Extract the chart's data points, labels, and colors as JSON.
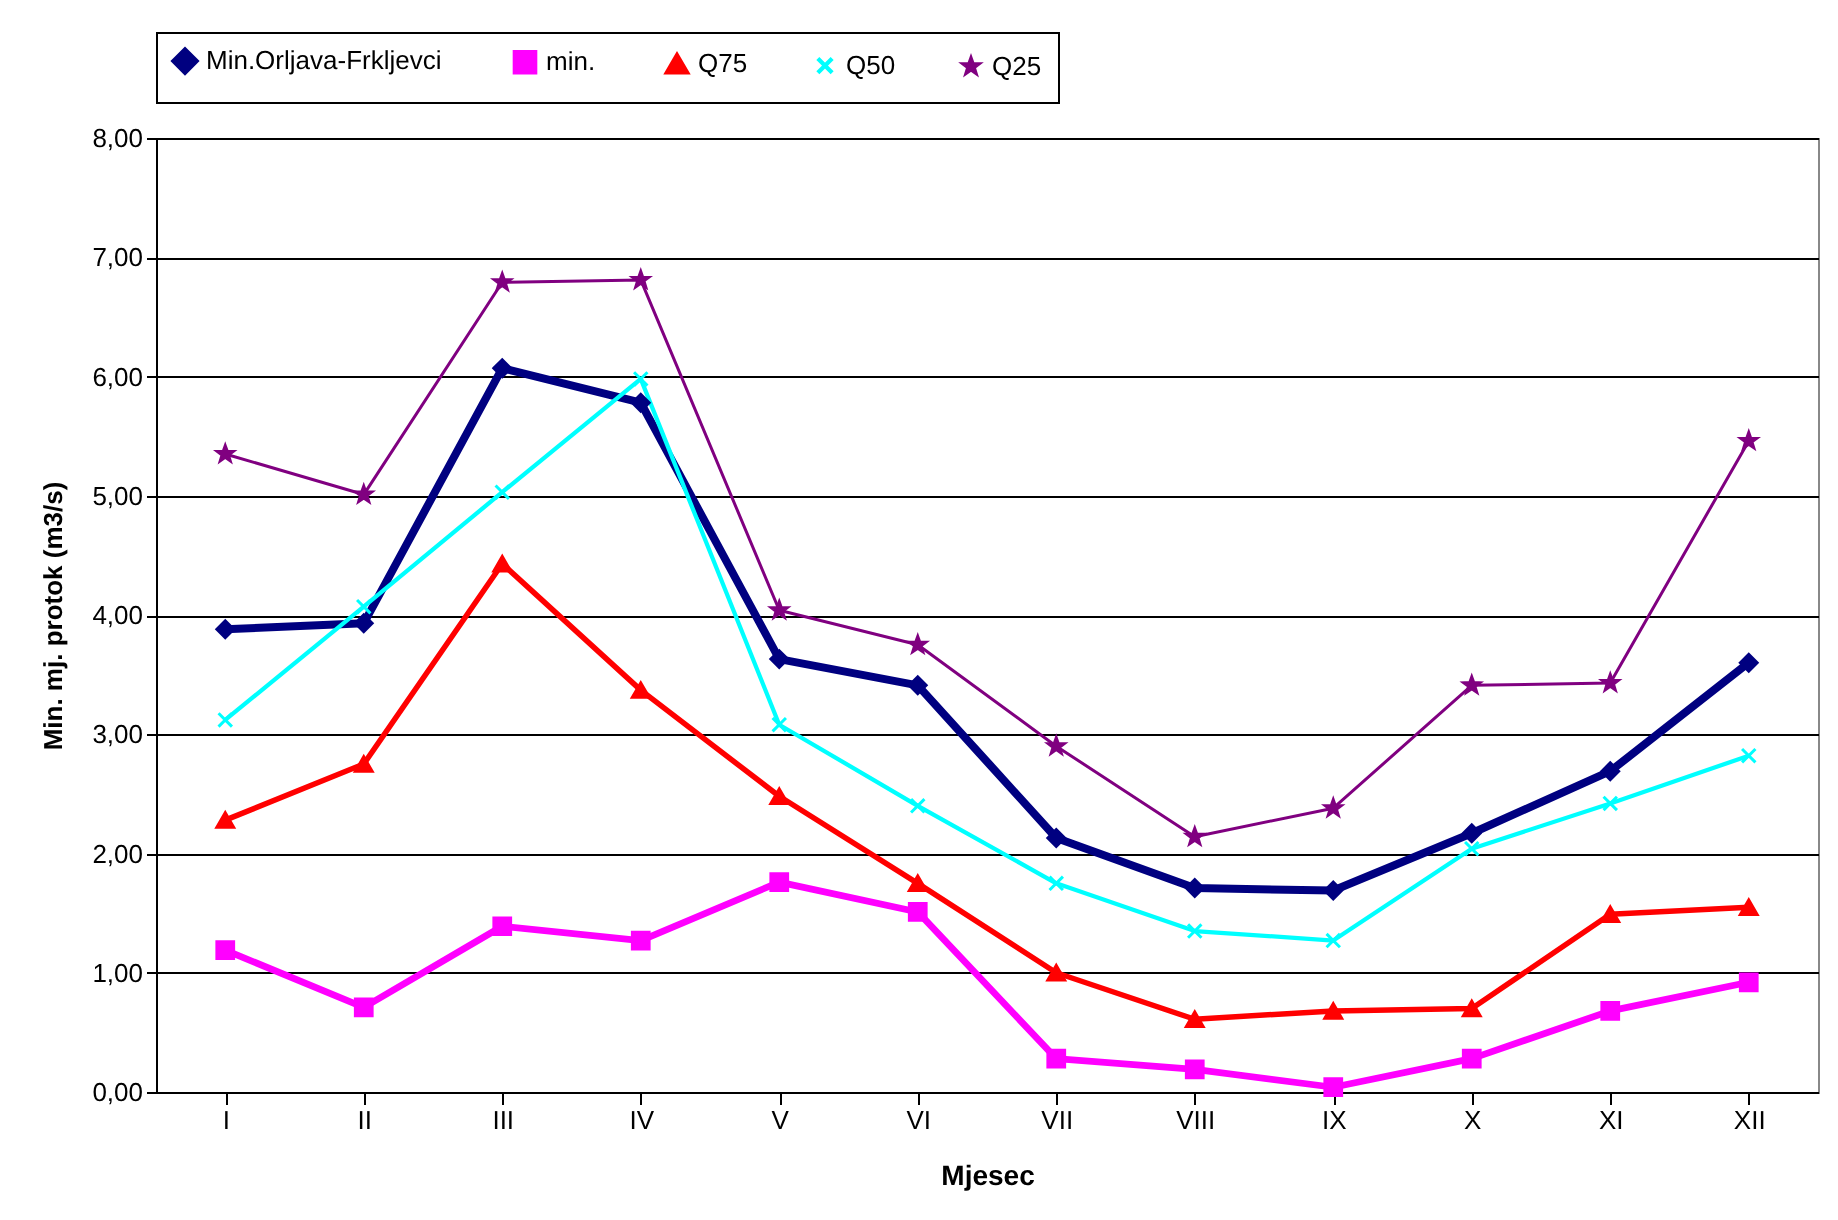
{
  "chart_data": {
    "type": "line",
    "xlabel": "Mjesec",
    "ylabel": "Min. mj. protok (m3/s)",
    "categories": [
      "I",
      "II",
      "III",
      "IV",
      "V",
      "VI",
      "VII",
      "VIII",
      "IX",
      "X",
      "XI",
      "XII"
    ],
    "series": [
      {
        "name": "Min.Orljava-Frkljevci",
        "color": "#000080",
        "marker": "diamond",
        "values": [
          3.88,
          3.93,
          6.07,
          5.78,
          3.63,
          3.41,
          2.13,
          1.71,
          1.69,
          2.17,
          2.69,
          3.6
        ]
      },
      {
        "name": "min.",
        "color": "#ff00ff",
        "marker": "square",
        "values": [
          1.19,
          0.71,
          1.39,
          1.27,
          1.76,
          1.51,
          0.28,
          0.19,
          0.04,
          0.28,
          0.68,
          0.92
        ]
      },
      {
        "name": "Q75",
        "color": "#ff0000",
        "marker": "triangle",
        "values": [
          2.28,
          2.75,
          4.43,
          3.37,
          2.48,
          1.75,
          1.0,
          0.61,
          0.68,
          0.7,
          1.49,
          1.55
        ]
      },
      {
        "name": "Q50",
        "color": "#00ffff",
        "marker": "cross",
        "values": [
          3.12,
          4.07,
          5.03,
          5.98,
          3.08,
          2.4,
          1.75,
          1.35,
          1.27,
          2.04,
          2.42,
          2.82
        ]
      },
      {
        "name": "Q25",
        "color": "#800080",
        "marker": "star",
        "values": [
          5.35,
          5.01,
          6.79,
          6.81,
          4.04,
          3.75,
          2.9,
          2.14,
          2.38,
          3.41,
          3.43,
          5.46
        ]
      }
    ],
    "ylim": [
      0,
      8
    ],
    "yticks": [
      {
        "value": 0,
        "label": "0,00"
      },
      {
        "value": 1,
        "label": "1,00"
      },
      {
        "value": 2,
        "label": "2,00"
      },
      {
        "value": 3,
        "label": "3,00"
      },
      {
        "value": 4,
        "label": "4,00"
      },
      {
        "value": 5,
        "label": "5,00"
      },
      {
        "value": 6,
        "label": "6,00"
      },
      {
        "value": 7,
        "label": "7,00"
      },
      {
        "value": 8,
        "label": "8,00"
      }
    ],
    "grid": "y",
    "legend": "top",
    "line_style": "solid"
  }
}
